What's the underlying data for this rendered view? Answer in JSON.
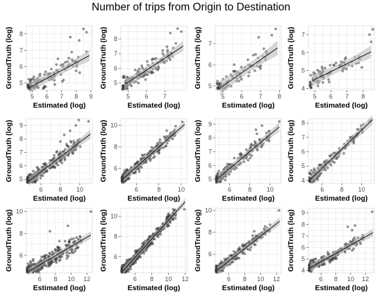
{
  "title": "Number of trips from Origin to Destination",
  "xlabel": "Estimated (log)",
  "ylabel": "GroundTruth (log)",
  "colors": {
    "point": "#3a3a3a",
    "line": "#111111",
    "band": "#bdbdbd",
    "grid": "#e6e6e6"
  },
  "chart_data": [
    {
      "type": "scatter",
      "xticks": [
        5,
        6,
        7,
        8,
        9
      ],
      "yticks": [
        5,
        6,
        7,
        8
      ],
      "xlim": [
        4.6,
        9.1
      ],
      "ylim": [
        4.55,
        8.5
      ],
      "fit": {
        "slope": 0.48,
        "intercept": 2.4
      },
      "spread": 0.55,
      "n": 110,
      "outliers": [
        [
          8.5,
          8.3
        ],
        [
          8.7,
          8.1
        ],
        [
          8.2,
          7.6
        ],
        [
          8.7,
          6.9
        ],
        [
          7.6,
          7.8
        ]
      ]
    },
    {
      "type": "scatter",
      "xticks": [
        5,
        6,
        7
      ],
      "yticks": [
        5,
        6,
        7,
        8
      ],
      "xlim": [
        4.6,
        8.2
      ],
      "ylim": [
        4.5,
        8.9
      ],
      "fit": {
        "slope": 0.82,
        "intercept": 0.95
      },
      "spread": 0.5,
      "n": 130,
      "outliers": [
        [
          7.7,
          8.7
        ],
        [
          7.9,
          8.5
        ],
        [
          7.3,
          8.4
        ],
        [
          7.6,
          7.7
        ]
      ]
    },
    {
      "type": "scatter",
      "xticks": [
        5,
        6,
        7,
        8
      ],
      "yticks": [
        5,
        6,
        7
      ],
      "xlim": [
        4.6,
        8.1
      ],
      "ylim": [
        4.8,
        7.85
      ],
      "fit": {
        "slope": 0.62,
        "intercept": 1.9
      },
      "spread": 0.45,
      "n": 80,
      "outliers": [
        [
          7.8,
          7.7
        ],
        [
          7.6,
          7.4
        ],
        [
          6.9,
          7.3
        ]
      ]
    },
    {
      "type": "scatter",
      "xticks": [
        5,
        6,
        7,
        8
      ],
      "yticks": [
        4,
        5,
        6,
        7
      ],
      "xlim": [
        4.6,
        8.7
      ],
      "ylim": [
        3.9,
        7.5
      ],
      "fit": {
        "slope": 0.44,
        "intercept": 2.3
      },
      "spread": 0.45,
      "n": 80,
      "outliers": [
        [
          8.6,
          7.3
        ],
        [
          8.4,
          7.0
        ],
        [
          8.5,
          6.6
        ]
      ]
    },
    {
      "type": "scatter",
      "xticks": [
        6,
        8,
        10
      ],
      "yticks": [
        5,
        6,
        7,
        8,
        9
      ],
      "xlim": [
        4.5,
        11.3
      ],
      "ylim": [
        4.7,
        9.5
      ],
      "fit": {
        "slope": 0.55,
        "intercept": 2.25
      },
      "spread": 0.45,
      "n": 300,
      "outliers": [
        [
          10.9,
          9.3
        ],
        [
          9.9,
          9.4
        ],
        [
          9.6,
          9.0
        ],
        [
          9.0,
          8.6
        ],
        [
          8.4,
          8.3
        ],
        [
          8.0,
          7.8
        ]
      ]
    },
    {
      "type": "scatter",
      "xticks": [
        6,
        8,
        10
      ],
      "yticks": [
        6,
        8,
        10
      ],
      "xlim": [
        4.6,
        10.5
      ],
      "ylim": [
        4.6,
        10.6
      ],
      "fit": {
        "slope": 0.92,
        "intercept": 0.6
      },
      "spread": 0.5,
      "n": 260,
      "outliers": [
        [
          10.1,
          10.3
        ],
        [
          9.5,
          9.9
        ],
        [
          8.7,
          9.5
        ]
      ]
    },
    {
      "type": "scatter",
      "xticks": [
        6,
        8,
        10
      ],
      "yticks": [
        5,
        6,
        7,
        8,
        9
      ],
      "xlim": [
        4.6,
        11.1
      ],
      "ylim": [
        4.7,
        9.4
      ],
      "fit": {
        "slope": 0.62,
        "intercept": 2.05
      },
      "spread": 0.45,
      "n": 180,
      "outliers": [
        [
          10.9,
          9.2
        ],
        [
          9.2,
          8.9
        ],
        [
          8.6,
          8.6
        ],
        [
          8.7,
          8.3
        ]
      ]
    },
    {
      "type": "scatter",
      "xticks": [
        6,
        8,
        10
      ],
      "yticks": [
        4,
        5,
        6,
        7,
        8
      ],
      "xlim": [
        4.6,
        11.3
      ],
      "ylim": [
        3.8,
        8.3
      ],
      "fit": {
        "slope": 0.66,
        "intercept": 0.9
      },
      "spread": 0.4,
      "n": 160,
      "outliers": [
        [
          11.0,
          8.2
        ],
        [
          10.8,
          8.1
        ],
        [
          10.2,
          7.9
        ]
      ]
    },
    {
      "type": "scatter",
      "xticks": [
        6,
        8,
        10,
        12
      ],
      "yticks": [
        6,
        8,
        10
      ],
      "xlim": [
        4.3,
        12.7
      ],
      "ylim": [
        4.4,
        10.3
      ],
      "fit": {
        "slope": 0.42,
        "intercept": 2.6
      },
      "spread": 0.6,
      "n": 300,
      "outliers": [
        [
          12.5,
          10.0
        ],
        [
          9.6,
          8.7
        ],
        [
          8.5,
          7.3
        ],
        [
          7.3,
          8.2
        ],
        [
          9.8,
          7.2
        ]
      ]
    },
    {
      "type": "scatter",
      "xticks": [
        6,
        8,
        10,
        12
      ],
      "yticks": [
        6,
        8,
        10
      ],
      "xlim": [
        4.3,
        12.2
      ],
      "ylim": [
        4.4,
        10.8
      ],
      "fit": {
        "slope": 0.92,
        "intercept": 0.4
      },
      "spread": 0.5,
      "n": 420,
      "outliers": [
        [
          11.9,
          10.7
        ],
        [
          10.6,
          10.2
        ],
        [
          9.8,
          9.4
        ],
        [
          9.5,
          8.8
        ]
      ]
    },
    {
      "type": "scatter",
      "xticks": [
        6,
        8,
        10,
        12
      ],
      "yticks": [
        6,
        8,
        10
      ],
      "xlim": [
        4.3,
        12.6
      ],
      "ylim": [
        4.3,
        10.2
      ],
      "fit": {
        "slope": 0.57,
        "intercept": 1.95
      },
      "spread": 0.45,
      "n": 220,
      "outliers": [
        [
          12.3,
          10.0
        ],
        [
          9.2,
          8.1
        ],
        [
          9.0,
          7.7
        ]
      ]
    },
    {
      "type": "scatter",
      "xticks": [
        6,
        8,
        10,
        12
      ],
      "yticks": [
        4,
        5,
        6,
        7,
        8,
        9
      ],
      "xlim": [
        4.3,
        13.2
      ],
      "ylim": [
        3.8,
        9.4
      ],
      "fit": {
        "slope": 0.36,
        "intercept": 2.6
      },
      "spread": 0.45,
      "n": 200,
      "outliers": [
        [
          12.9,
          9.1
        ],
        [
          10.6,
          7.9
        ],
        [
          10.2,
          7.5
        ],
        [
          9.6,
          7.8
        ]
      ]
    }
  ]
}
